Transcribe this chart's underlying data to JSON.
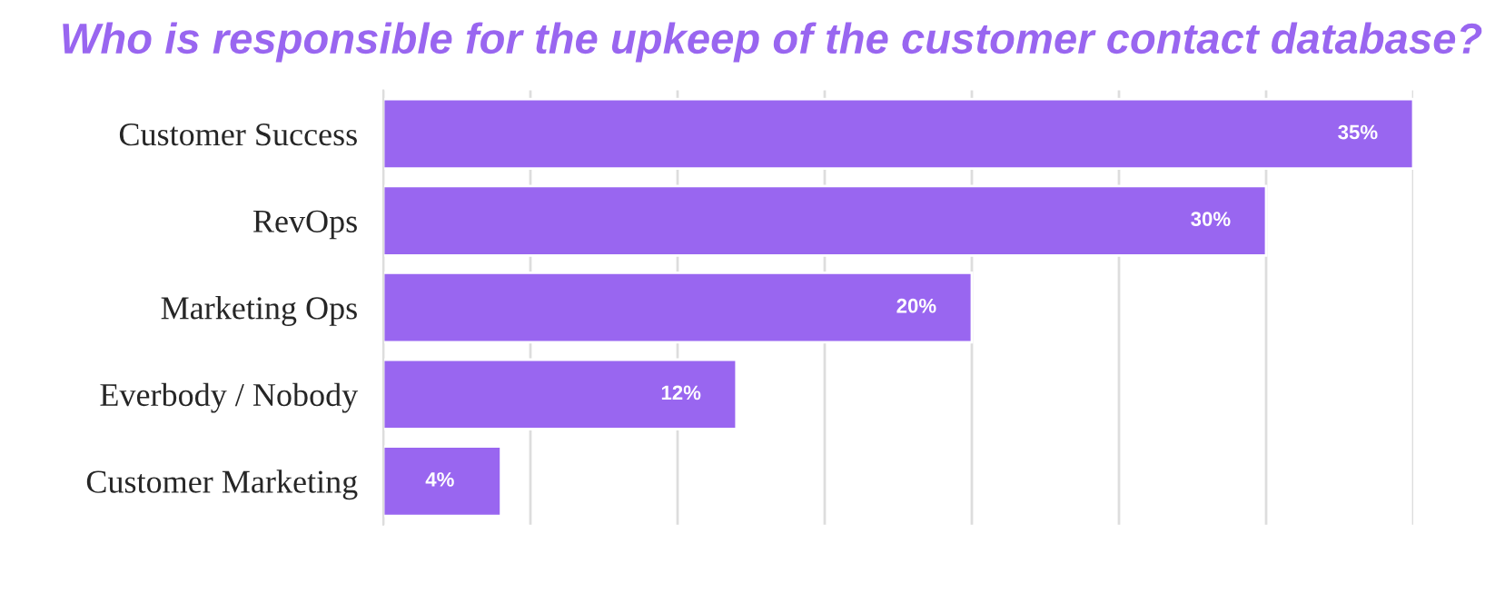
{
  "chart_data": {
    "type": "bar",
    "orientation": "horizontal",
    "title": "Who is responsible for the upkeep of the customer contact database?",
    "categories": [
      "Customer Success",
      "RevOps",
      "Marketing Ops",
      "Everbody / Nobody",
      "Customer Marketing"
    ],
    "values": [
      35,
      30,
      20,
      12,
      4
    ],
    "value_labels": [
      "35%",
      "30%",
      "20%",
      "12%",
      "4%"
    ],
    "color": "#9966f0",
    "xlim": [
      0,
      35
    ],
    "xticks": [
      {
        "value": 0,
        "label": null
      },
      {
        "value": 5,
        "label": null
      },
      {
        "value": 10,
        "label": null
      },
      {
        "value": 15,
        "label": null
      },
      {
        "value": 20,
        "label": null
      },
      {
        "value": 25,
        "label": null
      },
      {
        "value": 30,
        "label": null
      },
      {
        "value": 35,
        "label": null
      }
    ],
    "grid": "x",
    "tick_labels": "y"
  }
}
